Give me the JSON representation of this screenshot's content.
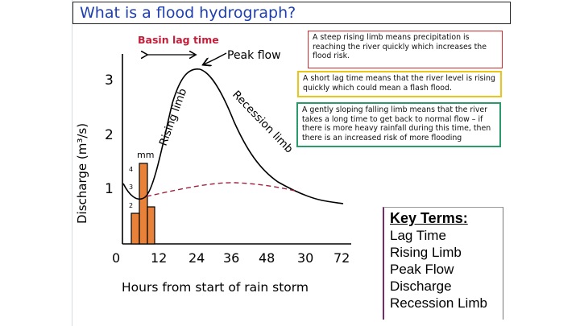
{
  "slide": {
    "title": "What is a flood hydrograph?"
  },
  "notes": {
    "steep": "A steep rising limb means precipitation is reaching the river quickly which increases the flood risk.",
    "lag": "A short lag time means that the river level is rising quickly which could mean a flash flood.",
    "gentle": "A gently sloping falling limb means that the river takes a long time to get back to normal flow – if there is more heavy rainfall during this time, then there is an increased risk of more flooding"
  },
  "key_terms": {
    "heading": "Key Terms:",
    "items": [
      "Lag Time",
      "Rising Limb",
      "Peak Flow",
      "Discharge",
      "Recession Limb"
    ]
  },
  "labels": {
    "basin_lag": "Basin lag time",
    "peak_flow": "Peak flow",
    "rising_limb": "Rising limb",
    "recession_limb": "Recession limb",
    "rain_unit": "mm",
    "y_axis": "Discharge (m³/s)",
    "x_axis": "Hours from start of rain storm"
  },
  "axis": {
    "x_ticks": [
      "0",
      "12",
      "24",
      "36",
      "48",
      "30",
      "72"
    ],
    "y_ticks": [
      "3",
      "2",
      "1"
    ],
    "rain_ticks": [
      "4",
      "3",
      "2"
    ]
  },
  "colors": {
    "title": "#1f3fb0",
    "basin_lag": "#c41e3a",
    "bars": "#e8823a",
    "baseflow": "#a0213f",
    "note_red": "#d42a2a",
    "note_yellow": "#e8c61a",
    "note_green": "#2a9a6a"
  }
}
